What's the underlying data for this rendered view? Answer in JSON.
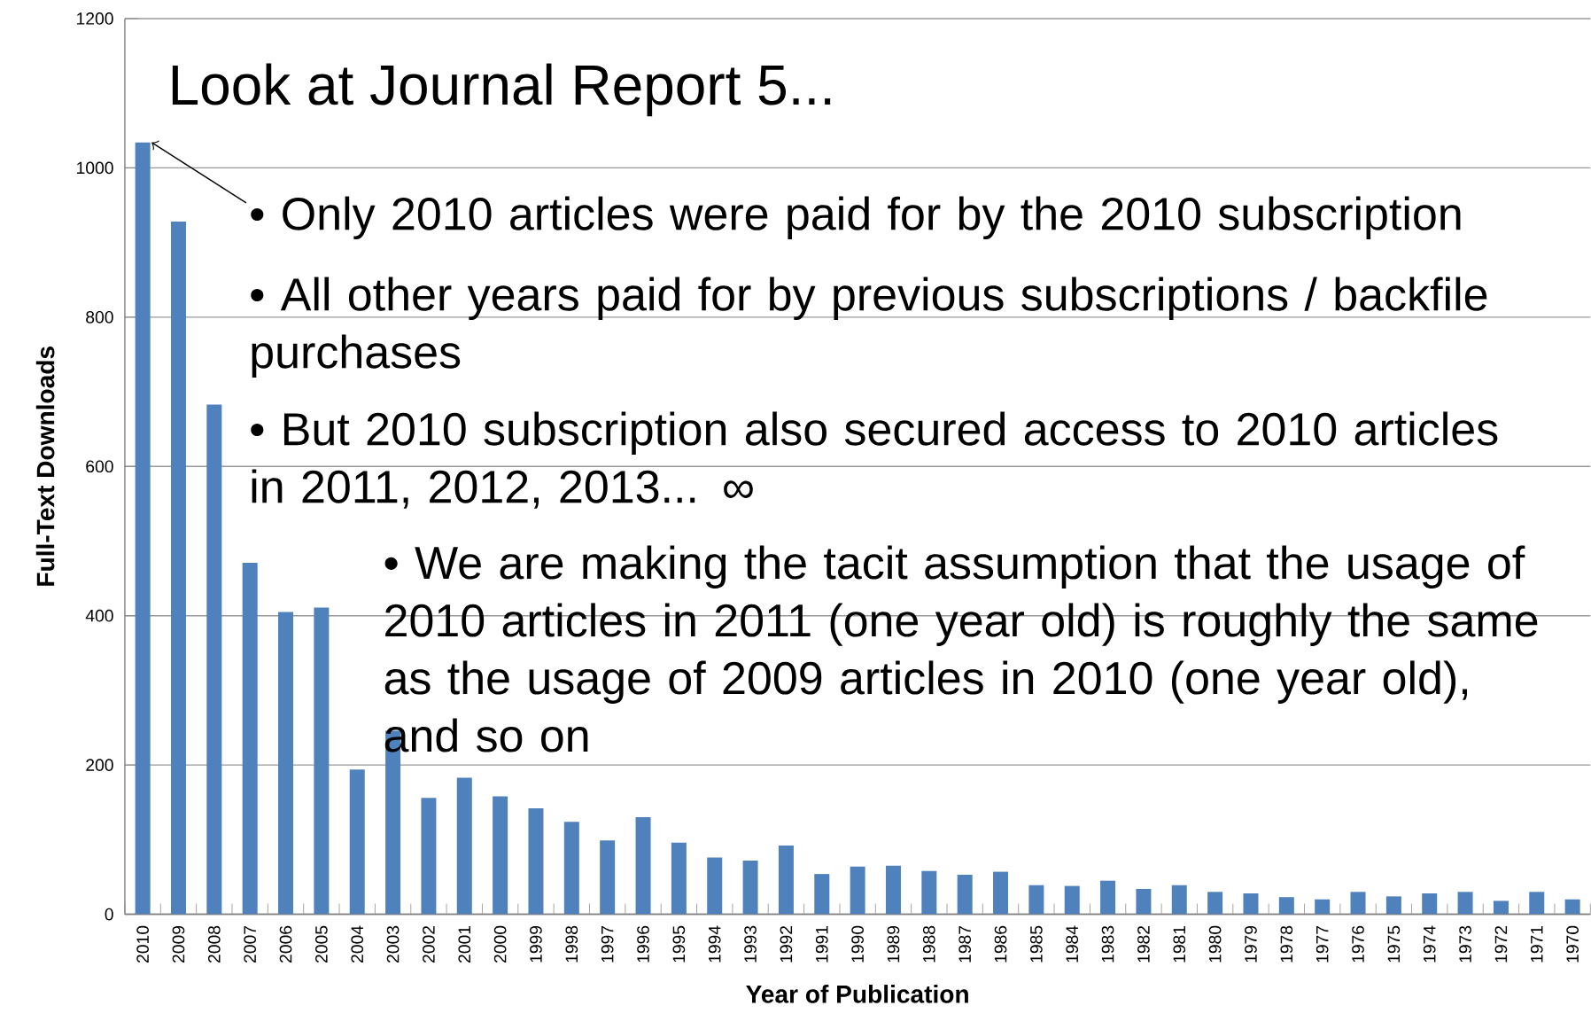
{
  "chart_data": {
    "type": "bar",
    "title": "Look at Journal Report 5...",
    "xlabel": "Year of Publication",
    "ylabel": "Full-Text Downloads",
    "categories": [
      "2010",
      "2009",
      "2008",
      "2007",
      "2006",
      "2005",
      "2004",
      "2003",
      "2002",
      "2001",
      "2000",
      "1999",
      "1998",
      "1997",
      "1996",
      "1995",
      "1994",
      "1993",
      "1992",
      "1991",
      "1990",
      "1989",
      "1988",
      "1987",
      "1986",
      "1985",
      "1984",
      "1983",
      "1982",
      "1981",
      "1980",
      "1979",
      "1978",
      "1977",
      "1976",
      "1975",
      "1974",
      "1973",
      "1972",
      "1971",
      "1970"
    ],
    "values": [
      1034,
      928,
      683,
      471,
      405,
      411,
      194,
      246,
      156,
      183,
      158,
      142,
      124,
      99,
      130,
      96,
      76,
      72,
      92,
      54,
      64,
      65,
      58,
      53,
      57,
      39,
      38,
      45,
      34,
      39,
      30,
      28,
      23,
      20,
      30,
      24,
      28,
      30,
      18,
      30,
      20
    ],
    "color": "#4f81bd",
    "ylim": [
      0,
      1200
    ],
    "yticks": [
      0,
      200,
      400,
      600,
      800,
      1000,
      1200
    ],
    "grid": "y",
    "annotations": [
      {
        "text": "• Only 2010 articles were paid for by the 2010 subscription",
        "x": "2010",
        "y": 1034
      },
      "• All other years paid for by previous subscriptions / backfile purchases",
      "• But 2010 subscription also secured access to 2010 articles in 2011, 2012, 2013... ∞",
      "• We are making the tacit assumption that the usage of 2010 articles in 2011 (one year old) is roughly the same as the usage of 2009 articles in 2010 (one year old), and so on"
    ]
  }
}
